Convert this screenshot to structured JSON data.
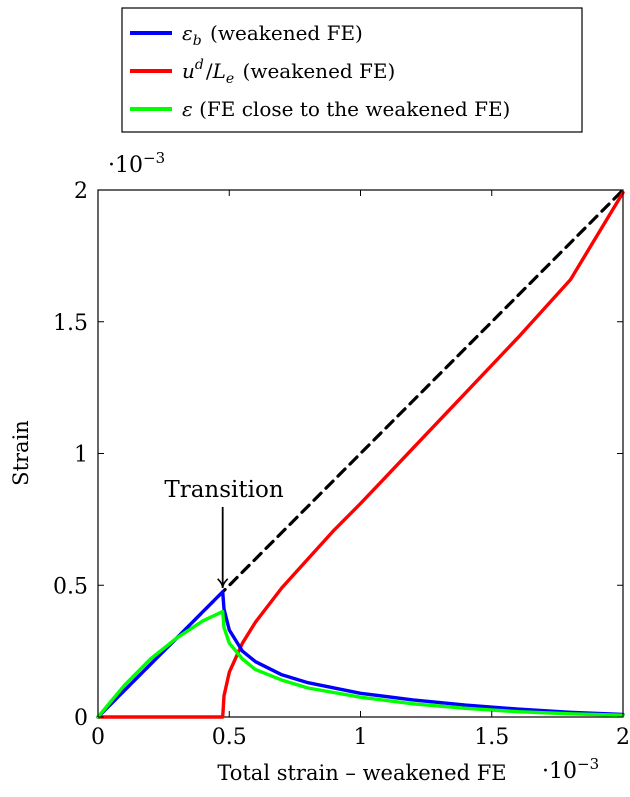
{
  "chart_data": {
    "type": "line",
    "xlabel": "Total strain – weakened FE",
    "ylabel": "Strain",
    "x_scale_label": "·10",
    "y_scale_label": "·10",
    "scale_exponent": "−3",
    "xlim": [
      0,
      2
    ],
    "ylim": [
      0,
      2
    ],
    "x_ticks": [
      "0",
      "0.5",
      "1",
      "1.5",
      "2"
    ],
    "y_ticks": [
      "0",
      "0.5",
      "1",
      "1.5",
      "2"
    ],
    "x_tick_values": [
      0,
      0.5,
      1,
      1.5,
      2
    ],
    "y_tick_values": [
      0,
      0.5,
      1,
      1.5,
      2
    ],
    "grid": false,
    "legend_position": "top",
    "legend": [
      {
        "symbol": "ε",
        "sub": "b",
        "sup": "",
        "suffix": "",
        "text": " (weakened FE)",
        "color": "#0000ff"
      },
      {
        "symbol": "u",
        "sub": "",
        "sup": "d",
        "suffix": "/L",
        "suffix_sub": "e",
        "text": " (weakened FE)",
        "color": "#ff0000"
      },
      {
        "symbol": "ε",
        "sub": "",
        "sup": "",
        "suffix": "",
        "text": " (FE close to the weakened FE)",
        "color": "#00ff00"
      }
    ],
    "annotation": {
      "text": "Transition",
      "x": 0.475,
      "y": 0.475
    },
    "series": [
      {
        "color": "#000000",
        "style": "dashed",
        "x": [
          0,
          0.5,
          1,
          1.5,
          2
        ],
        "y": [
          0,
          0.5,
          1,
          1.5,
          2
        ]
      },
      {
        "color": "#ff0000",
        "style": "solid",
        "x": [
          0,
          0.475,
          0.48,
          0.5,
          0.55,
          0.6,
          0.7,
          0.8,
          0.9,
          1.0,
          1.2,
          1.4,
          1.6,
          1.8,
          2.0
        ],
        "y": [
          0,
          0,
          0.08,
          0.17,
          0.28,
          0.36,
          0.49,
          0.6,
          0.71,
          0.81,
          1.02,
          1.23,
          1.44,
          1.66,
          1.99
        ]
      },
      {
        "color": "#0000ff",
        "style": "solid",
        "x": [
          0,
          0.1,
          0.2,
          0.3,
          0.4,
          0.475,
          0.48,
          0.5,
          0.55,
          0.6,
          0.7,
          0.8,
          1.0,
          1.2,
          1.4,
          1.6,
          1.8,
          2.0
        ],
        "y": [
          0,
          0.1,
          0.2,
          0.3,
          0.4,
          0.475,
          0.41,
          0.33,
          0.25,
          0.21,
          0.16,
          0.13,
          0.09,
          0.065,
          0.045,
          0.03,
          0.018,
          0.01
        ]
      },
      {
        "color": "#00ff00",
        "style": "solid",
        "x": [
          0,
          0.1,
          0.2,
          0.3,
          0.4,
          0.475,
          0.48,
          0.5,
          0.55,
          0.6,
          0.7,
          0.8,
          1.0,
          1.2,
          1.4,
          1.6,
          1.8,
          2.0
        ],
        "y": [
          0,
          0.12,
          0.22,
          0.3,
          0.365,
          0.4,
          0.34,
          0.28,
          0.22,
          0.18,
          0.14,
          0.11,
          0.075,
          0.05,
          0.033,
          0.02,
          0.012,
          0.007
        ]
      }
    ]
  }
}
